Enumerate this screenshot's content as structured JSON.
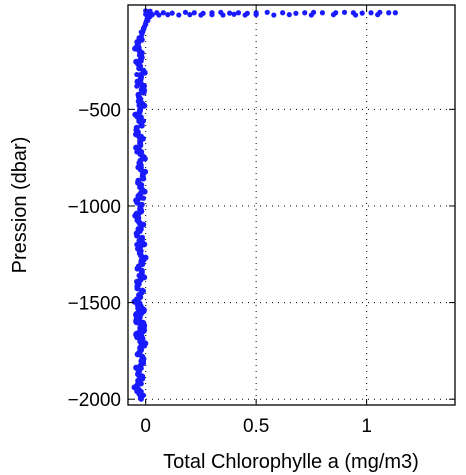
{
  "chart_data": {
    "type": "scatter",
    "xlabel": "Total Chlorophylle a (mg/m3)",
    "ylabel": "Pression (dbar)",
    "xlim": [
      -0.08,
      1.4
    ],
    "ylim": [
      -2030,
      40
    ],
    "xticks": [
      0,
      0.5,
      1
    ],
    "xtick_labels": [
      "0",
      "0.5",
      "1"
    ],
    "yticks": [
      -2000,
      -1500,
      -1000,
      -500
    ],
    "ytick_labels": [
      "−2000",
      "−1500",
      "−1000",
      "−500"
    ],
    "grid": true,
    "marker_color": "#1a1aff",
    "series": [
      {
        "x": [
          0.0,
          0.01,
          0.02,
          0.05,
          0.08,
          0.12,
          0.18,
          0.22,
          0.26,
          0.3,
          0.34,
          0.38,
          0.42,
          0.46,
          0.5,
          0.55,
          0.62,
          0.68,
          0.72,
          0.76,
          0.8,
          0.86,
          0.9,
          0.94,
          0.98,
          1.02,
          1.06,
          1.1,
          1.13,
          0.0,
          0.01,
          0.03,
          0.06,
          0.1,
          0.15,
          0.2,
          0.25,
          0.3,
          0.35,
          0.4,
          0.45,
          0.5,
          0.58,
          0.65,
          0.75,
          0.85,
          0.95,
          1.05,
          0.02,
          0.01,
          0.0,
          -0.01,
          -0.02,
          -0.03,
          -0.03,
          -0.02,
          -0.04,
          -0.02,
          -0.03,
          -0.01,
          -0.02,
          -0.04,
          -0.02,
          -0.03,
          -0.01,
          -0.03,
          -0.02,
          -0.04,
          -0.02,
          -0.03,
          -0.01,
          -0.02,
          -0.03,
          -0.02,
          -0.04,
          -0.02,
          -0.03,
          -0.01,
          -0.02,
          -0.03,
          -0.02,
          -0.04,
          -0.01,
          -0.02,
          -0.03,
          -0.02,
          -0.04,
          -0.02,
          -0.03,
          -0.01,
          -0.02,
          -0.03
        ],
        "y": [
          10,
          5,
          8,
          0,
          0,
          -2,
          2,
          0,
          -3,
          0,
          2,
          -2,
          0,
          -3,
          0,
          2,
          0,
          -3,
          0,
          2,
          0,
          0,
          2,
          0,
          -2,
          0,
          2,
          0,
          0,
          -8,
          -5,
          -10,
          -12,
          -10,
          -12,
          -10,
          -12,
          -10,
          -12,
          -8,
          -12,
          -10,
          -12,
          -10,
          -12,
          -10,
          -12,
          -10,
          -20,
          -40,
          -60,
          -80,
          -100,
          -130,
          -180,
          -250,
          -320,
          -400,
          -480,
          -560,
          -640,
          -720,
          -800,
          -880,
          -960,
          -1040,
          -1120,
          -1200,
          -1280,
          -1360,
          -1440,
          -1520,
          -1600,
          -1640,
          -1680,
          -1720,
          -1760,
          -1800,
          -1840,
          -1880,
          -1920,
          -1960,
          -1980,
          -2000,
          -150,
          -220,
          -380,
          -540,
          -700,
          -860,
          -1020,
          -1180
        ]
      }
    ]
  }
}
